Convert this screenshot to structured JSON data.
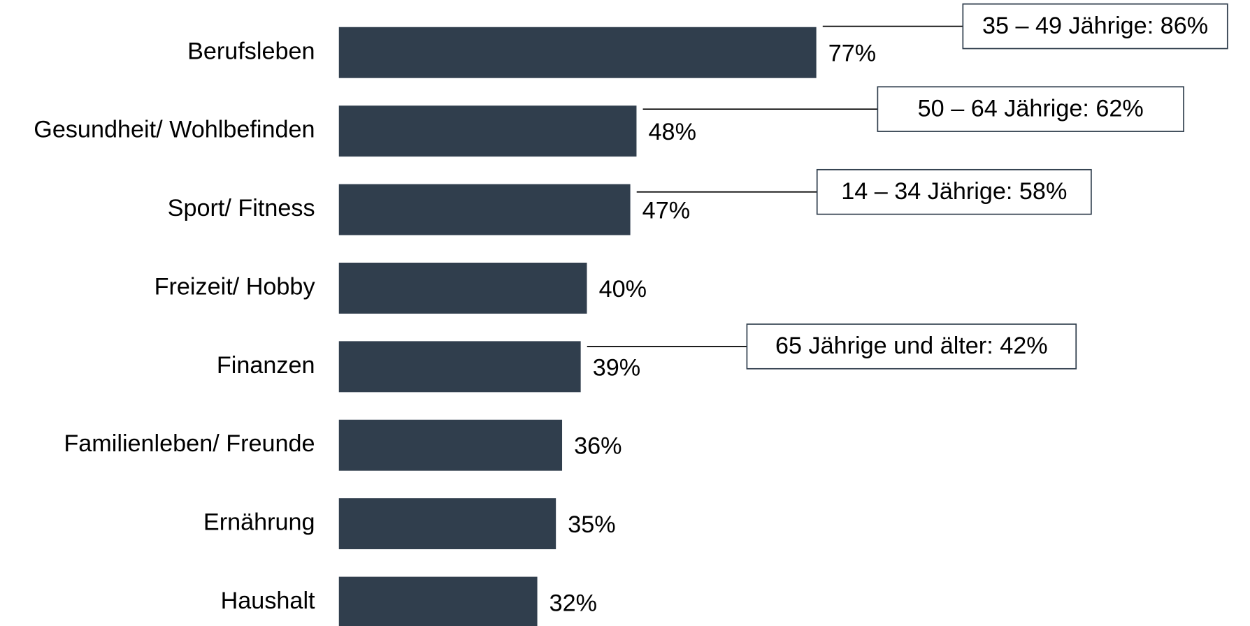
{
  "chart_data": {
    "type": "bar",
    "orientation": "horizontal",
    "categories": [
      "Berufsleben",
      "Gesundheit/ Wohlbefinden",
      "Sport/ Fitness",
      "Freizeit/ Hobby",
      "Finanzen",
      "Familienleben/ Freunde",
      "Ernährung",
      "Haushalt"
    ],
    "values": [
      77,
      48,
      47,
      40,
      39,
      36,
      35,
      32
    ],
    "value_labels": [
      "77%",
      "48%",
      "47%",
      "40%",
      "39%",
      "36%",
      "35%",
      "32%"
    ],
    "color": "#303e4d",
    "annotations": [
      "35 – 49 Jährige: 86%",
      "50 – 64 Jährige: 62%",
      "14 – 34 Jährige: 58%",
      "65 Jährige und älter: 42%"
    ]
  }
}
